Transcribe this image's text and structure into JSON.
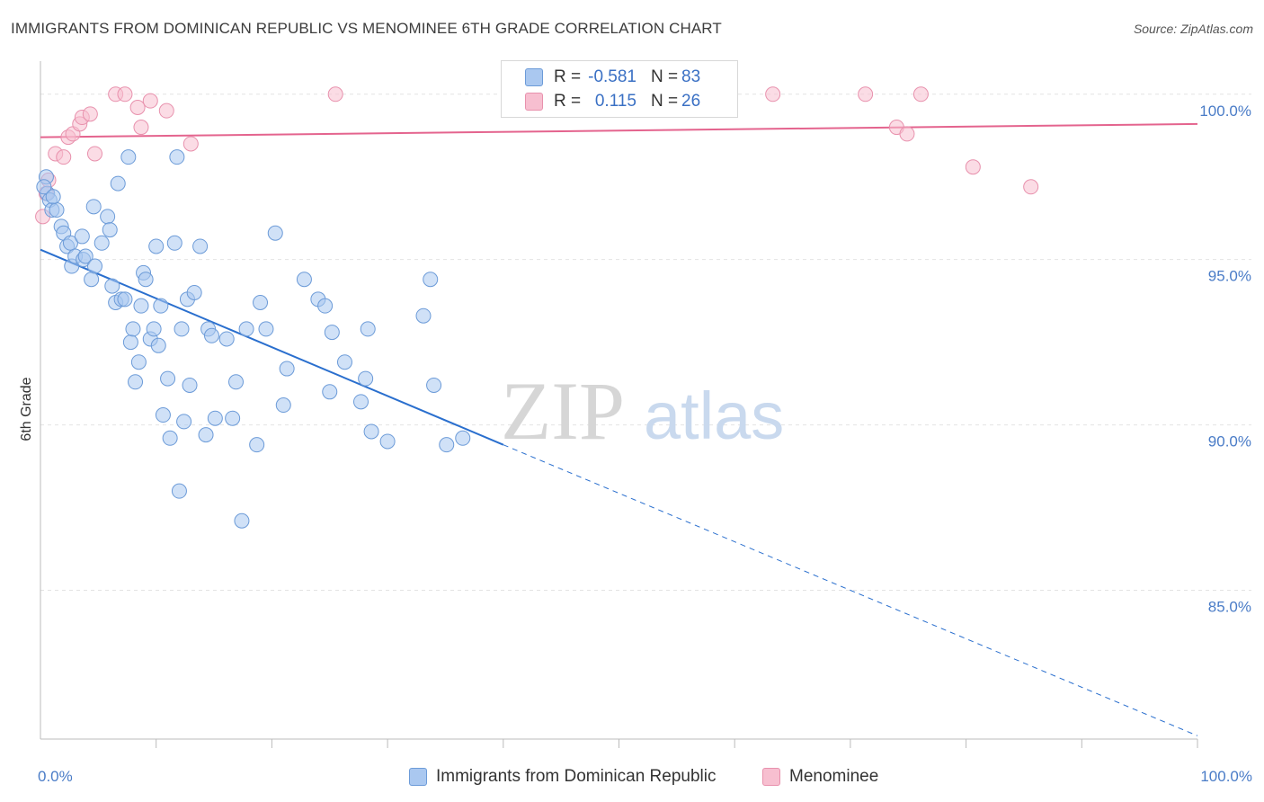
{
  "header": {
    "title": "IMMIGRANTS FROM DOMINICAN REPUBLIC VS MENOMINEE 6TH GRADE CORRELATION CHART",
    "source": "Source: ZipAtlas.com"
  },
  "watermark": {
    "zip": "ZIP",
    "atlas": "atlas"
  },
  "legend": {
    "rows": [
      {
        "r_label": "R =",
        "r_value": "-0.581",
        "n_label": "N =",
        "n_value": "83"
      },
      {
        "r_label": "R =",
        "r_value": "0.115",
        "n_label": "N =",
        "n_value": "26"
      }
    ]
  },
  "bottom_legend": {
    "series1": "Immigrants from Dominican Republic",
    "series2": "Menominee"
  },
  "colors": {
    "blue_fill": "#aac8f0",
    "blue_stroke": "#6c9bd8",
    "blue_line": "#2a6fce",
    "pink_fill": "#f7bfd0",
    "pink_stroke": "#e891ad",
    "pink_line": "#e4648e",
    "tick_text": "#4a7cc7",
    "grid": "#e3e3e3"
  },
  "chart_data": {
    "type": "scatter",
    "title": "IMMIGRANTS FROM DOMINICAN REPUBLIC VS MENOMINEE 6TH GRADE CORRELATION CHART",
    "xlabel": "",
    "ylabel": "6th Grade",
    "xlim": [
      0,
      100
    ],
    "ylim": [
      80.5,
      101.0
    ],
    "x_tick_labels": [
      "0.0%",
      "100.0%"
    ],
    "y_ticks": [
      85,
      90,
      95,
      100
    ],
    "y_tick_labels": [
      "85.0%",
      "90.0%",
      "95.0%",
      "100.0%"
    ],
    "grid": true,
    "legend_placement": "top-center",
    "series": [
      {
        "name": "Immigrants from Dominican Republic",
        "color": "#aac8f0",
        "r": -0.581,
        "n": 83,
        "trend": {
          "x0": 0,
          "y0": 95.3,
          "x1": 40,
          "y1": 89.4,
          "dash_to_x": 100,
          "dash_to_y": 80.6
        },
        "points": [
          [
            0.5,
            97.5
          ],
          [
            0.6,
            97.0
          ],
          [
            0.8,
            96.8
          ],
          [
            1.0,
            96.5
          ],
          [
            1.4,
            96.5
          ],
          [
            1.8,
            96.0
          ],
          [
            2.0,
            95.8
          ],
          [
            2.3,
            95.4
          ],
          [
            2.6,
            95.5
          ],
          [
            2.7,
            94.8
          ],
          [
            3.0,
            95.1
          ],
          [
            3.6,
            95.7
          ],
          [
            3.7,
            95.0
          ],
          [
            3.9,
            95.1
          ],
          [
            4.4,
            94.4
          ],
          [
            4.6,
            96.6
          ],
          [
            4.7,
            94.8
          ],
          [
            5.3,
            95.5
          ],
          [
            5.8,
            96.3
          ],
          [
            6.0,
            95.9
          ],
          [
            6.2,
            94.2
          ],
          [
            6.5,
            93.7
          ],
          [
            6.7,
            97.3
          ],
          [
            7.0,
            93.8
          ],
          [
            7.3,
            93.8
          ],
          [
            7.6,
            98.1
          ],
          [
            7.8,
            92.5
          ],
          [
            8.0,
            92.9
          ],
          [
            8.2,
            91.3
          ],
          [
            8.5,
            91.9
          ],
          [
            8.7,
            93.6
          ],
          [
            8.9,
            94.6
          ],
          [
            9.1,
            94.4
          ],
          [
            9.5,
            92.6
          ],
          [
            9.8,
            92.9
          ],
          [
            10.0,
            95.4
          ],
          [
            10.2,
            92.4
          ],
          [
            10.4,
            93.6
          ],
          [
            10.6,
            90.3
          ],
          [
            11.0,
            91.4
          ],
          [
            11.2,
            89.6
          ],
          [
            11.6,
            95.5
          ],
          [
            11.8,
            98.1
          ],
          [
            12.0,
            88.0
          ],
          [
            12.2,
            92.9
          ],
          [
            12.4,
            90.1
          ],
          [
            12.7,
            93.8
          ],
          [
            12.9,
            91.2
          ],
          [
            13.3,
            94.0
          ],
          [
            13.8,
            95.4
          ],
          [
            14.3,
            89.7
          ],
          [
            14.5,
            92.9
          ],
          [
            14.8,
            92.7
          ],
          [
            15.1,
            90.2
          ],
          [
            16.1,
            92.6
          ],
          [
            16.6,
            90.2
          ],
          [
            16.9,
            91.3
          ],
          [
            17.4,
            87.1
          ],
          [
            17.8,
            92.9
          ],
          [
            18.7,
            89.4
          ],
          [
            19.0,
            93.7
          ],
          [
            19.5,
            92.9
          ],
          [
            20.3,
            95.8
          ],
          [
            21.0,
            90.6
          ],
          [
            21.3,
            91.7
          ],
          [
            22.8,
            94.4
          ],
          [
            24.0,
            93.8
          ],
          [
            24.6,
            93.6
          ],
          [
            25.0,
            91.0
          ],
          [
            25.2,
            92.8
          ],
          [
            26.3,
            91.9
          ],
          [
            27.7,
            90.7
          ],
          [
            28.1,
            91.4
          ],
          [
            28.3,
            92.9
          ],
          [
            28.6,
            89.8
          ],
          [
            30.0,
            89.5
          ],
          [
            33.1,
            93.3
          ],
          [
            33.7,
            94.4
          ],
          [
            34.0,
            91.2
          ],
          [
            35.1,
            89.4
          ],
          [
            36.5,
            89.6
          ],
          [
            0.3,
            97.2
          ],
          [
            1.1,
            96.9
          ]
        ]
      },
      {
        "name": "Menominee",
        "color": "#f7bfd0",
        "r": 0.115,
        "n": 26,
        "trend": {
          "x0": 0,
          "y0": 98.7,
          "x1": 100,
          "y1": 99.1
        },
        "points": [
          [
            0.2,
            96.3
          ],
          [
            0.5,
            97.0
          ],
          [
            0.7,
            97.4
          ],
          [
            1.3,
            98.2
          ],
          [
            2.0,
            98.1
          ],
          [
            2.4,
            98.7
          ],
          [
            2.8,
            98.8
          ],
          [
            3.4,
            99.1
          ],
          [
            3.6,
            99.3
          ],
          [
            4.3,
            99.4
          ],
          [
            4.7,
            98.2
          ],
          [
            6.5,
            100.0
          ],
          [
            7.3,
            100.0
          ],
          [
            8.4,
            99.6
          ],
          [
            8.7,
            99.0
          ],
          [
            9.5,
            99.8
          ],
          [
            10.9,
            99.5
          ],
          [
            13.0,
            98.5
          ],
          [
            25.5,
            100.0
          ],
          [
            63.3,
            100.0
          ],
          [
            71.3,
            100.0
          ],
          [
            74.0,
            99.0
          ],
          [
            74.9,
            98.8
          ],
          [
            76.1,
            100.0
          ],
          [
            80.6,
            97.8
          ],
          [
            85.6,
            97.2
          ]
        ]
      }
    ]
  }
}
